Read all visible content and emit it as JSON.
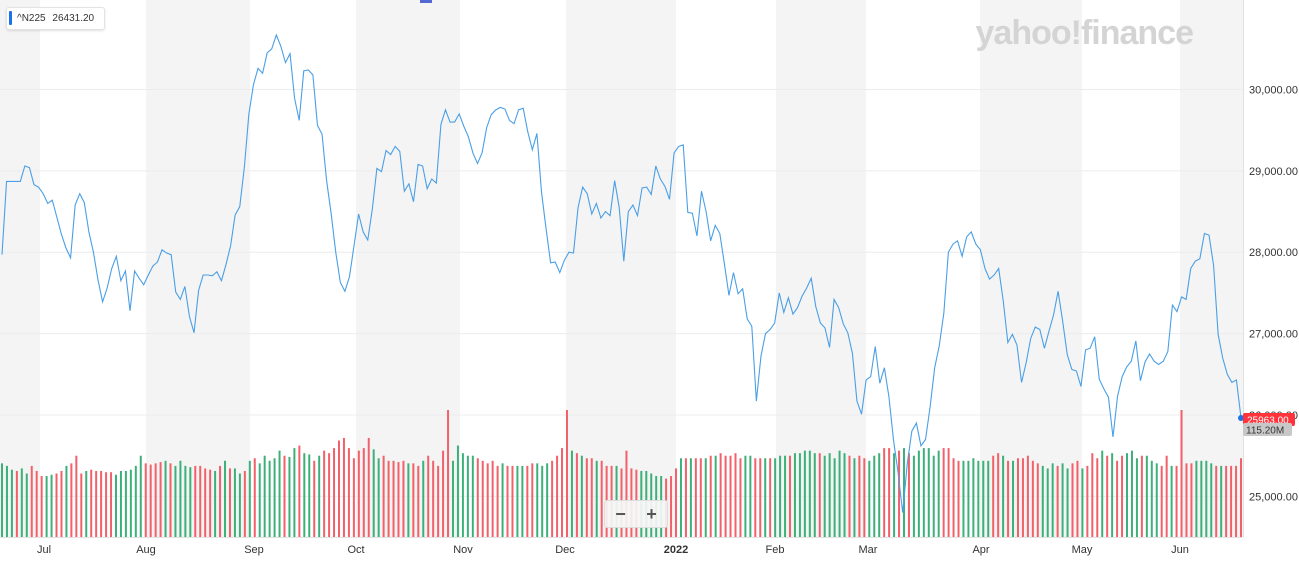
{
  "legend": {
    "symbol": "^N225",
    "value": "26431.20",
    "color": "#1a73e8"
  },
  "watermark": "yahoo!finance",
  "price_pill": {
    "label": "25963.00",
    "color": "#ff333a"
  },
  "volume_pill": {
    "label": "115.20M",
    "color": "#c8c8c8"
  },
  "zoom": {
    "minus_label": "−",
    "plus_label": "+"
  },
  "colors": {
    "line": "#4a9fe6",
    "volume_up": "#3db07a",
    "volume_down": "#f2606a",
    "band": "#f4f4f4",
    "grid": "#ececec"
  },
  "chart_data": {
    "type": "line",
    "ylim": [
      24500,
      31100
    ],
    "y_ticks": [
      25000,
      26000,
      27000,
      28000,
      29000,
      30000
    ],
    "y_tick_labels": [
      "25,000.00",
      "26,000.00",
      "27,000.00",
      "28,000.00",
      "29,000.00",
      "30,000.00"
    ],
    "month_labels": [
      "Jul",
      "Aug",
      "Sep",
      "Oct",
      "Nov",
      "Dec",
      "2022",
      "Feb",
      "Mar",
      "Apr",
      "May",
      "Jun"
    ],
    "series": [
      {
        "values": [
          27970,
          28870,
          28870,
          28870,
          28870,
          29060,
          29040,
          28830,
          28800,
          28720,
          28600,
          28640,
          28430,
          28220,
          28050,
          27930,
          28580,
          28720,
          28610,
          28250,
          28000,
          27660,
          27390,
          27560,
          27800,
          27950,
          27650,
          27770,
          27280,
          27770,
          27680,
          27600,
          27720,
          27830,
          27880,
          28030,
          27990,
          27970,
          27510,
          27420,
          27580,
          27210,
          27010,
          27530,
          27720,
          27720,
          27710,
          27760,
          27650,
          27850,
          28080,
          28460,
          28560,
          29040,
          29700,
          30060,
          30260,
          30200,
          30450,
          30500,
          30670,
          30530,
          30330,
          30440,
          29890,
          29620,
          30230,
          30240,
          30180,
          29560,
          29450,
          28880,
          28470,
          28000,
          27630,
          27520,
          27700,
          28080,
          28470,
          28250,
          28150,
          28530,
          29030,
          28990,
          29250,
          29200,
          29300,
          29240,
          28750,
          28840,
          28620,
          29080,
          29060,
          28780,
          28900,
          28850,
          29570,
          29750,
          29600,
          29600,
          29700,
          29550,
          29420,
          29220,
          29090,
          29220,
          29530,
          29690,
          29750,
          29780,
          29760,
          29620,
          29580,
          29750,
          29770,
          29480,
          29260,
          29460,
          28740,
          28290,
          27870,
          27880,
          27750,
          27900,
          28000,
          27990,
          28550,
          28800,
          28720,
          28470,
          28600,
          28420,
          28500,
          28450,
          28880,
          28550,
          27890,
          28500,
          28580,
          28450,
          28790,
          28800,
          28710,
          29060,
          28900,
          28810,
          28650,
          29220,
          29300,
          29320,
          28490,
          28480,
          28200,
          28750,
          28500,
          28140,
          28330,
          28230,
          27860,
          27470,
          27750,
          27490,
          27550,
          27180,
          27090,
          26170,
          26720,
          27000,
          27050,
          27130,
          27500,
          27260,
          27440,
          27240,
          27320,
          27460,
          27560,
          27680,
          27330,
          27130,
          27070,
          26830,
          27420,
          27320,
          27120,
          27010,
          26760,
          26170,
          26010,
          26430,
          26470,
          26840,
          26390,
          26580,
          26220,
          25690,
          25290,
          24800,
          25400,
          25800,
          25900,
          25620,
          25700,
          26100,
          26580,
          26850,
          27250,
          28000,
          28100,
          28140,
          27950,
          28190,
          28250,
          28100,
          28030,
          27800,
          27670,
          27720,
          27800,
          27400,
          26890,
          26990,
          26860,
          26400,
          26640,
          26940,
          27080,
          27050,
          26820,
          27030,
          27230,
          27520,
          27150,
          26740,
          26560,
          26540,
          26350,
          26800,
          26820,
          26960,
          26440,
          26320,
          26220,
          25730,
          26230,
          26470,
          26590,
          26660,
          26910,
          26420,
          26650,
          26750,
          26660,
          26620,
          26660,
          26780,
          27350,
          27270,
          27450,
          27420,
          27800,
          27890,
          27920,
          28230,
          28210,
          27840,
          26990,
          26700,
          26500,
          26400,
          26430,
          25963
        ]
      },
      {
        "name": "Volume",
        "volume_scale_max": 1000,
        "bars": [
          [
            580,
            1
          ],
          [
            560,
            1
          ],
          [
            530,
            1
          ],
          [
            520,
            0
          ],
          [
            540,
            1
          ],
          [
            500,
            1
          ],
          [
            560,
            0
          ],
          [
            520,
            0
          ],
          [
            480,
            0
          ],
          [
            480,
            1
          ],
          [
            490,
            1
          ],
          [
            500,
            0
          ],
          [
            520,
            0
          ],
          [
            560,
            1
          ],
          [
            580,
            0
          ],
          [
            640,
            0
          ],
          [
            500,
            0
          ],
          [
            520,
            1
          ],
          [
            530,
            0
          ],
          [
            520,
            0
          ],
          [
            520,
            0
          ],
          [
            510,
            0
          ],
          [
            510,
            0
          ],
          [
            490,
            1
          ],
          [
            520,
            1
          ],
          [
            520,
            1
          ],
          [
            530,
            1
          ],
          [
            560,
            1
          ],
          [
            640,
            1
          ],
          [
            580,
            0
          ],
          [
            570,
            0
          ],
          [
            580,
            0
          ],
          [
            590,
            0
          ],
          [
            600,
            1
          ],
          [
            580,
            0
          ],
          [
            560,
            1
          ],
          [
            600,
            1
          ],
          [
            560,
            1
          ],
          [
            550,
            1
          ],
          [
            560,
            0
          ],
          [
            560,
            0
          ],
          [
            540,
            0
          ],
          [
            530,
            0
          ],
          [
            520,
            1
          ],
          [
            560,
            0
          ],
          [
            600,
            1
          ],
          [
            540,
            0
          ],
          [
            540,
            1
          ],
          [
            500,
            1
          ],
          [
            520,
            0
          ],
          [
            600,
            1
          ],
          [
            620,
            0
          ],
          [
            580,
            1
          ],
          [
            640,
            1
          ],
          [
            600,
            1
          ],
          [
            620,
            1
          ],
          [
            680,
            1
          ],
          [
            640,
            0
          ],
          [
            630,
            1
          ],
          [
            700,
            1
          ],
          [
            720,
            0
          ],
          [
            660,
            1
          ],
          [
            650,
            1
          ],
          [
            600,
            0
          ],
          [
            640,
            1
          ],
          [
            680,
            0
          ],
          [
            660,
            0
          ],
          [
            700,
            0
          ],
          [
            760,
            0
          ],
          [
            780,
            0
          ],
          [
            700,
            0
          ],
          [
            620,
            0
          ],
          [
            680,
            0
          ],
          [
            700,
            0
          ],
          [
            780,
            0
          ],
          [
            690,
            1
          ],
          [
            620,
            1
          ],
          [
            640,
            0
          ],
          [
            600,
            0
          ],
          [
            600,
            0
          ],
          [
            590,
            0
          ],
          [
            600,
            0
          ],
          [
            580,
            1
          ],
          [
            580,
            0
          ],
          [
            560,
            0
          ],
          [
            600,
            1
          ],
          [
            640,
            0
          ],
          [
            600,
            0
          ],
          [
            560,
            0
          ],
          [
            680,
            0
          ],
          [
            1000,
            0
          ],
          [
            600,
            1
          ],
          [
            720,
            1
          ],
          [
            660,
            1
          ],
          [
            640,
            1
          ],
          [
            640,
            1
          ],
          [
            620,
            0
          ],
          [
            600,
            0
          ],
          [
            580,
            0
          ],
          [
            600,
            0
          ],
          [
            560,
            0
          ],
          [
            580,
            1
          ],
          [
            560,
            0
          ],
          [
            560,
            0
          ],
          [
            560,
            1
          ],
          [
            560,
            1
          ],
          [
            560,
            0
          ],
          [
            580,
            0
          ],
          [
            580,
            1
          ],
          [
            560,
            1
          ],
          [
            580,
            1
          ],
          [
            600,
            0
          ],
          [
            640,
            0
          ],
          [
            700,
            0
          ],
          [
            1000,
            0
          ],
          [
            680,
            1
          ],
          [
            660,
            0
          ],
          [
            640,
            1
          ],
          [
            620,
            0
          ],
          [
            620,
            0
          ],
          [
            600,
            1
          ],
          [
            600,
            0
          ],
          [
            560,
            0
          ],
          [
            560,
            0
          ],
          [
            560,
            1
          ],
          [
            540,
            0
          ],
          [
            680,
            0
          ],
          [
            540,
            0
          ],
          [
            530,
            0
          ],
          [
            520,
            1
          ],
          [
            520,
            1
          ],
          [
            500,
            1
          ],
          [
            480,
            1
          ],
          [
            480,
            1
          ],
          [
            460,
            0
          ],
          [
            480,
            0
          ],
          [
            540,
            0
          ],
          [
            620,
            1
          ],
          [
            620,
            0
          ],
          [
            620,
            1
          ],
          [
            620,
            0
          ],
          [
            620,
            0
          ],
          [
            620,
            1
          ],
          [
            640,
            0
          ],
          [
            640,
            1
          ],
          [
            660,
            0
          ],
          [
            640,
            0
          ],
          [
            640,
            0
          ],
          [
            660,
            0
          ],
          [
            620,
            0
          ],
          [
            640,
            1
          ],
          [
            640,
            1
          ],
          [
            620,
            0
          ],
          [
            620,
            0
          ],
          [
            620,
            1
          ],
          [
            620,
            0
          ],
          [
            620,
            1
          ],
          [
            640,
            1
          ],
          [
            640,
            1
          ],
          [
            640,
            0
          ],
          [
            660,
            1
          ],
          [
            660,
            1
          ],
          [
            680,
            1
          ],
          [
            680,
            1
          ],
          [
            660,
            1
          ],
          [
            660,
            0
          ],
          [
            640,
            1
          ],
          [
            660,
            1
          ],
          [
            620,
            1
          ],
          [
            680,
            1
          ],
          [
            660,
            1
          ],
          [
            640,
            0
          ],
          [
            620,
            1
          ],
          [
            640,
            0
          ],
          [
            620,
            0
          ],
          [
            600,
            1
          ],
          [
            640,
            1
          ],
          [
            660,
            1
          ],
          [
            700,
            0
          ],
          [
            700,
            0
          ],
          [
            660,
            1
          ],
          [
            680,
            0
          ],
          [
            700,
            1
          ],
          [
            660,
            0
          ],
          [
            640,
            1
          ],
          [
            680,
            1
          ],
          [
            700,
            1
          ],
          [
            700,
            1
          ],
          [
            640,
            1
          ],
          [
            680,
            1
          ],
          [
            700,
            0
          ],
          [
            700,
            0
          ],
          [
            620,
            0
          ],
          [
            600,
            0
          ],
          [
            600,
            1
          ],
          [
            600,
            1
          ],
          [
            620,
            1
          ],
          [
            600,
            1
          ],
          [
            600,
            1
          ],
          [
            600,
            1
          ],
          [
            640,
            0
          ],
          [
            660,
            0
          ],
          [
            640,
            1
          ],
          [
            600,
            0
          ],
          [
            600,
            1
          ],
          [
            620,
            0
          ],
          [
            620,
            0
          ],
          [
            640,
            0
          ],
          [
            600,
            0
          ],
          [
            580,
            0
          ],
          [
            560,
            1
          ],
          [
            540,
            1
          ],
          [
            580,
            1
          ],
          [
            560,
            0
          ],
          [
            580,
            1
          ],
          [
            540,
            1
          ],
          [
            580,
            0
          ],
          [
            600,
            0
          ],
          [
            540,
            1
          ],
          [
            560,
            0
          ],
          [
            660,
            0
          ],
          [
            620,
            0
          ],
          [
            680,
            1
          ],
          [
            640,
            0
          ],
          [
            660,
            1
          ],
          [
            600,
            0
          ],
          [
            640,
            0
          ],
          [
            660,
            1
          ],
          [
            680,
            1
          ],
          [
            620,
            1
          ],
          [
            640,
            0
          ],
          [
            640,
            1
          ],
          [
            600,
            1
          ],
          [
            580,
            1
          ],
          [
            560,
            0
          ],
          [
            640,
            0
          ],
          [
            560,
            1
          ],
          [
            560,
            0
          ],
          [
            1000,
            0
          ],
          [
            580,
            0
          ],
          [
            580,
            0
          ],
          [
            600,
            1
          ],
          [
            600,
            1
          ],
          [
            600,
            1
          ],
          [
            580,
            1
          ],
          [
            560,
            0
          ],
          [
            560,
            1
          ],
          [
            560,
            0
          ],
          [
            560,
            0
          ],
          [
            560,
            0
          ],
          [
            620,
            0
          ]
        ]
      }
    ]
  }
}
